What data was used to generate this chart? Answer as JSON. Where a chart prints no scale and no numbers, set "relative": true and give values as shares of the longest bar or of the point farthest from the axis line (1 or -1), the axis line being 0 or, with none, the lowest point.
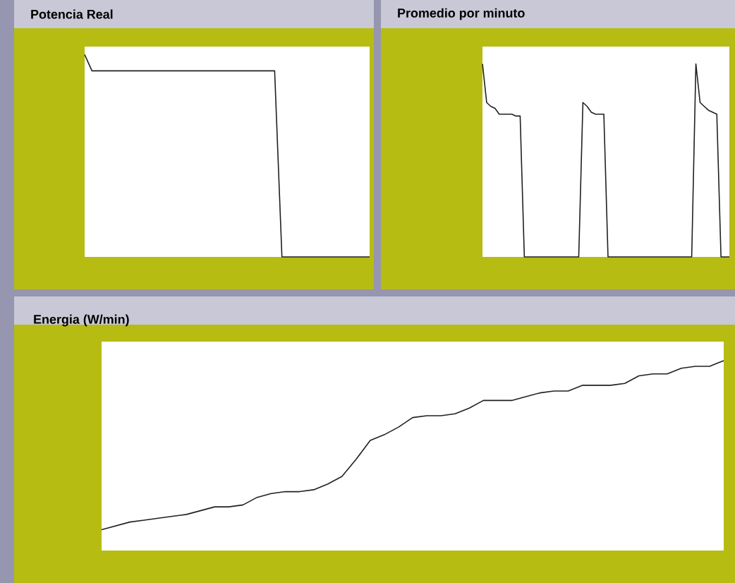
{
  "chart_data": [
    {
      "type": "line",
      "title": "Potencia Real",
      "relative": true,
      "categories": [
        null,
        null,
        null,
        null,
        null,
        null,
        null,
        null,
        null,
        null,
        null,
        null,
        null,
        null,
        null,
        null,
        null,
        null,
        null,
        null,
        null,
        null,
        null,
        null,
        null,
        null,
        null,
        null,
        null,
        null,
        null,
        null,
        null,
        null,
        null,
        null,
        null,
        null,
        null,
        null
      ],
      "series": [
        {
          "color": "#202020",
          "values": [
            1.0,
            0.92,
            0.92,
            0.92,
            0.92,
            0.92,
            0.92,
            0.92,
            0.92,
            0.92,
            0.92,
            0.92,
            0.92,
            0.92,
            0.92,
            0.92,
            0.92,
            0.92,
            0.92,
            0.92,
            0.92,
            0.92,
            0.92,
            0.92,
            0.92,
            0.92,
            0.92,
            0,
            0,
            0,
            0,
            0,
            0,
            0,
            0,
            0,
            0,
            0,
            0,
            0
          ]
        }
      ]
    },
    {
      "type": "line",
      "title": "Promedio por minuto",
      "relative": true,
      "categories": [
        null,
        null,
        null,
        null,
        null,
        null,
        null,
        null,
        null,
        null,
        null,
        null,
        null,
        null,
        null,
        null,
        null,
        null,
        null,
        null,
        null,
        null,
        null,
        null,
        null,
        null,
        null,
        null,
        null,
        null,
        null,
        null,
        null,
        null,
        null,
        null,
        null,
        null,
        null,
        null,
        null,
        null,
        null,
        null,
        null,
        null,
        null,
        null,
        null,
        null,
        null,
        null,
        null,
        null,
        null,
        null,
        null,
        null,
        null,
        null
      ],
      "series": [
        {
          "color": "#202020",
          "values": [
            1.0,
            0.8,
            0.78,
            0.77,
            0.74,
            0.74,
            0.74,
            0.74,
            0.73,
            0.73,
            0,
            0,
            0,
            0,
            0,
            0,
            0,
            0,
            0,
            0,
            0,
            0,
            0,
            0,
            0.8,
            0.78,
            0.75,
            0.74,
            0.74,
            0.74,
            0,
            0,
            0,
            0,
            0,
            0,
            0,
            0,
            0,
            0,
            0,
            0,
            0,
            0,
            0,
            0,
            0,
            0,
            0,
            0,
            0,
            1.0,
            0.8,
            0.78,
            0.76,
            0.75,
            0.74,
            0,
            0,
            0
          ]
        }
      ]
    },
    {
      "type": "line",
      "title": "Energia (W/min)",
      "relative": true,
      "categories": [
        null,
        null,
        null,
        null,
        null,
        null,
        null,
        null,
        null,
        null,
        null,
        null,
        null,
        null,
        null,
        null,
        null,
        null,
        null,
        null,
        null,
        null,
        null,
        null,
        null,
        null,
        null,
        null,
        null,
        null,
        null,
        null,
        null,
        null,
        null,
        null,
        null,
        null,
        null,
        null,
        null,
        null,
        null,
        null,
        null
      ],
      "series": [
        {
          "color": "#202020",
          "values": [
            0.11,
            0.13,
            0.15,
            0.16,
            0.17,
            0.18,
            0.19,
            0.21,
            0.23,
            0.23,
            0.24,
            0.28,
            0.3,
            0.31,
            0.31,
            0.32,
            0.35,
            0.39,
            0.48,
            0.58,
            0.61,
            0.65,
            0.7,
            0.71,
            0.71,
            0.72,
            0.75,
            0.79,
            0.79,
            0.79,
            0.81,
            0.83,
            0.84,
            0.84,
            0.87,
            0.87,
            0.87,
            0.88,
            0.92,
            0.93,
            0.93,
            0.96,
            0.97,
            0.97,
            1.0
          ]
        }
      ]
    }
  ]
}
